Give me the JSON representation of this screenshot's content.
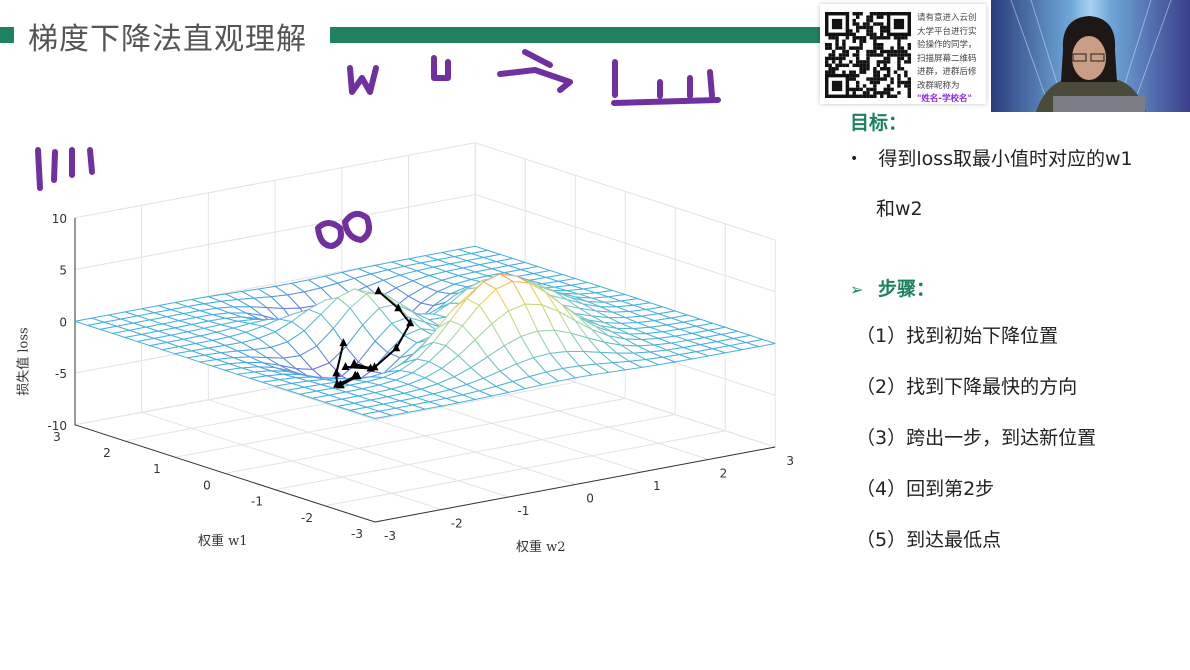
{
  "slide": {
    "title": "梯度下降法直观理解",
    "goal_heading": "目标：",
    "goal_bullet_line1": "得到loss取最小值时对应的w1",
    "goal_bullet_line2": "和w2",
    "steps_heading": "步骤：",
    "steps": [
      "（1）找到初始下降位置",
      "（2）找到下降最快的方向",
      "（3）跨出一步，到达新位置",
      "（4）回到第2步",
      "（5）到达最低点"
    ],
    "accent_color": "#1e8160"
  },
  "plot": {
    "zlabel": "损失值  loss",
    "xlabel": "权重  w1",
    "ylabel": "权重  w2",
    "z_ticks": [
      "10",
      "5",
      "0",
      "-5",
      "-10"
    ],
    "w1_ticks": [
      "3",
      "2",
      "1",
      "0",
      "-1",
      "-2",
      "-3"
    ],
    "w2_ticks": [
      "-3",
      "-2",
      "-1",
      "0",
      "1",
      "2",
      "3"
    ],
    "z_range": [
      -10,
      10
    ],
    "w1_range": [
      -3,
      3
    ],
    "w2_range": [
      -3,
      3
    ]
  },
  "annotation": {
    "ink_color": "#7030a0"
  },
  "overlay": {
    "qr_text": "请有意进入云创大学平台进行实验操作的同学，扫描屏幕二维码进群，进群后修改群昵称为",
    "qr_name": "\"姓名-学校名\""
  }
}
